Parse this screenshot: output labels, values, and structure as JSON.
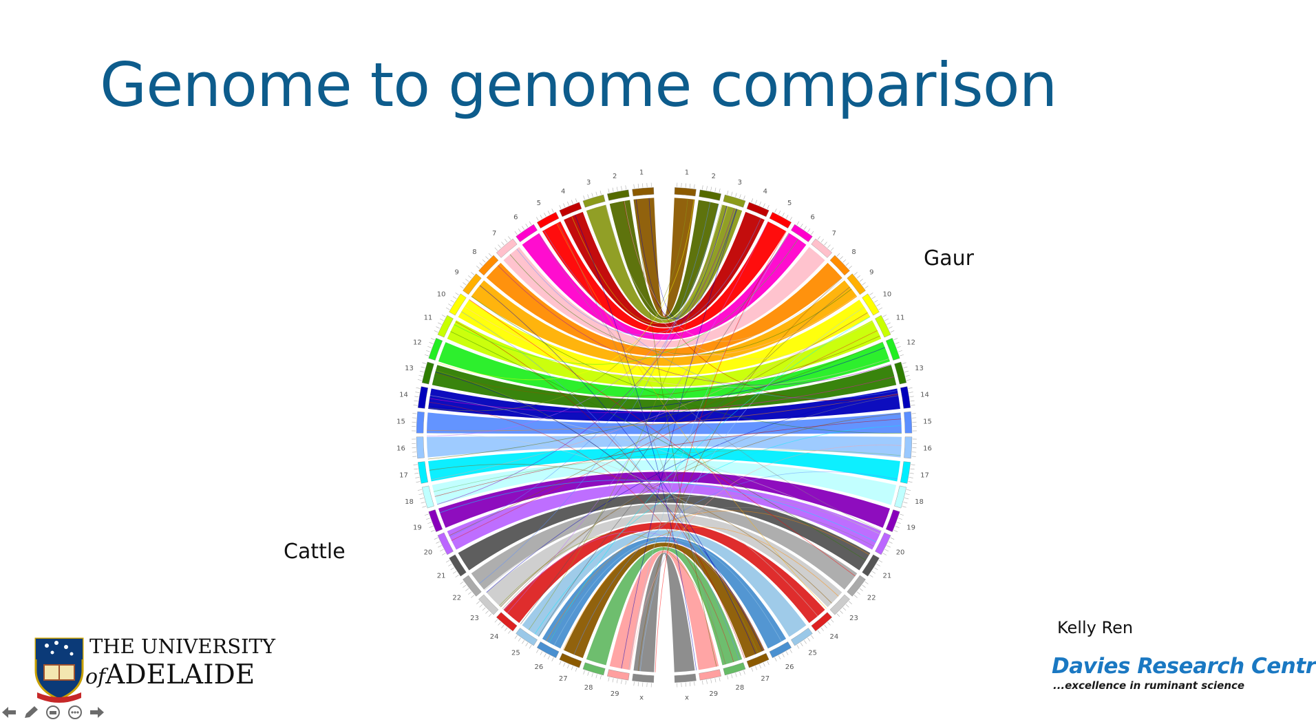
{
  "slide": {
    "title": "Genome to genome comparison"
  },
  "labels": {
    "gaur": "Gaur",
    "cattle": "Cattle"
  },
  "presenter": "Kelly Ren",
  "logos": {
    "university_line1": "THE UNIVERSITY",
    "university_of": "of",
    "university_line2": "ADELAIDE",
    "research_centre": "Davies Research Centre",
    "research_tagline": "...excellence in ruminant science"
  },
  "nav_icons": [
    "arrow-left-icon",
    "pen-icon",
    "subtitles-icon",
    "more-icon",
    "arrow-right-icon"
  ],
  "circos": {
    "gaur_chromosomes": [
      "1",
      "2",
      "3",
      "4",
      "5",
      "6",
      "7",
      "8",
      "9",
      "10",
      "11",
      "12",
      "13",
      "14",
      "15",
      "16",
      "17",
      "18",
      "19",
      "20",
      "21",
      "22",
      "23",
      "24",
      "25",
      "26",
      "27",
      "28",
      "29",
      "x"
    ],
    "cattle_chromosomes": [
      "1",
      "2",
      "3",
      "4",
      "5",
      "6",
      "7",
      "8",
      "9",
      "10",
      "11",
      "12",
      "13",
      "14",
      "15",
      "16",
      "17",
      "18",
      "19",
      "20",
      "21",
      "22",
      "23",
      "24",
      "25",
      "26",
      "27",
      "28",
      "29",
      "x"
    ],
    "colors": [
      "#8B5A00",
      "#556B00",
      "#8B9A1A",
      "#C00000",
      "#FF0000",
      "#FF00CC",
      "#FFC0CB",
      "#FF8C00",
      "#FFB000",
      "#FFFF00",
      "#C8FF00",
      "#22EE22",
      "#2E7D00",
      "#0000BB",
      "#5B8EFF",
      "#99C8FF",
      "#00EEFF",
      "#BFFFFF",
      "#8800BB",
      "#BB66FF",
      "#555555",
      "#AAAAAA",
      "#CCCCCC",
      "#DD2222",
      "#9AC8E8",
      "#4A90D0",
      "#8B5A00",
      "#66BB66",
      "#FFA0A0",
      "#888888"
    ]
  }
}
